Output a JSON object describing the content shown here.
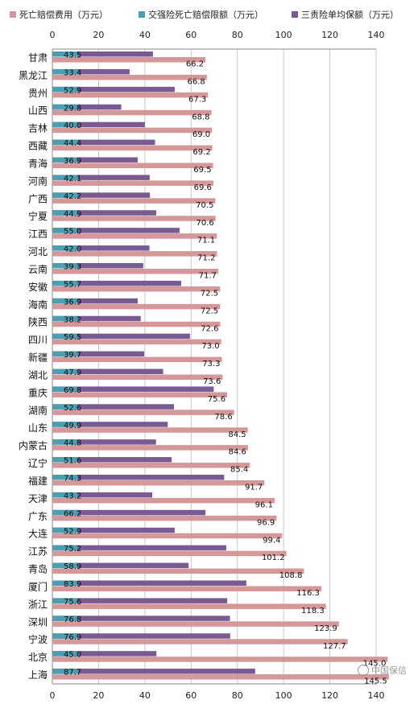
{
  "chart_data": {
    "type": "bar",
    "orientation": "horizontal",
    "categories": [
      "甘肃",
      "黑龙江",
      "贵州",
      "山西",
      "吉林",
      "西藏",
      "青海",
      "河南",
      "广西",
      "宁夏",
      "江西",
      "河北",
      "云南",
      "安徽",
      "海南",
      "陕西",
      "四川",
      "新疆",
      "湖北",
      "重庆",
      "湖南",
      "山东",
      "内蒙古",
      "辽宁",
      "福建",
      "天津",
      "广东",
      "大连",
      "江苏",
      "青岛",
      "厦门",
      "浙江",
      "深圳",
      "宁波",
      "北京",
      "上海"
    ],
    "series": [
      {
        "name": "死亡赔偿费用（万元）",
        "color": "#d4979a",
        "values": [
          66.2,
          66.8,
          67.3,
          68.8,
          69.0,
          69.2,
          69.5,
          69.6,
          70.5,
          70.6,
          71.1,
          71.2,
          71.7,
          72.5,
          72.5,
          72.6,
          73.0,
          73.3,
          73.6,
          75.6,
          78.6,
          84.5,
          84.6,
          85.4,
          91.7,
          96.1,
          96.9,
          99.4,
          101.2,
          108.8,
          116.3,
          118.3,
          123.9,
          127.7,
          145.0,
          145.5
        ]
      },
      {
        "name": "交强险死亡赔偿限额（万元）",
        "color": "#4b9fb0",
        "values": [
          11,
          11,
          11,
          11,
          11,
          11,
          11,
          11,
          11,
          11,
          11,
          11,
          11,
          11,
          11,
          11,
          11,
          11,
          11,
          11,
          11,
          11,
          11,
          11,
          11,
          11,
          11,
          11,
          11,
          11,
          11,
          11,
          11,
          11,
          11,
          11
        ]
      },
      {
        "name": "三责险单均保额（万元）",
        "color": "#7a5a93",
        "values": [
          43.5,
          33.4,
          52.9,
          29.8,
          40.0,
          44.4,
          36.9,
          42.1,
          42.2,
          44.9,
          55.0,
          42.0,
          39.3,
          55.7,
          36.9,
          38.2,
          59.5,
          39.7,
          47.9,
          69.8,
          52.6,
          49.9,
          44.8,
          51.6,
          74.3,
          43.2,
          66.2,
          52.9,
          75.2,
          58.9,
          83.9,
          75.6,
          76.8,
          76.9,
          45.0,
          87.7
        ]
      }
    ],
    "xlim": [
      0,
      140
    ],
    "xticks": [
      "0",
      "20",
      "40",
      "60",
      "80",
      "100",
      "120",
      "140"
    ],
    "grid": true,
    "legend_position": "top"
  },
  "watermark": "中国保信"
}
